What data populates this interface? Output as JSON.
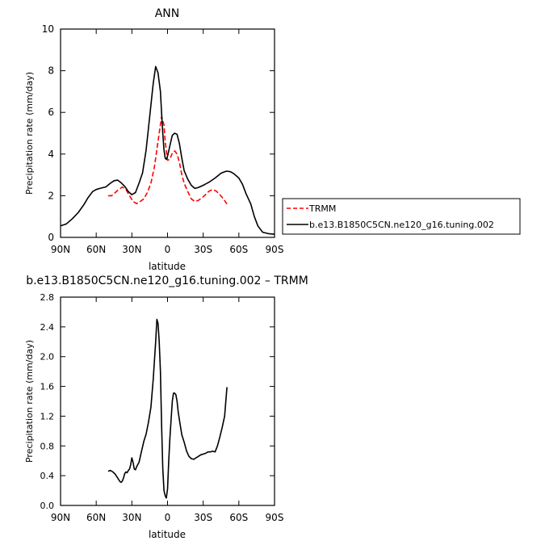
{
  "chart_data": [
    {
      "type": "line",
      "title": "ANN",
      "xlabel": "latitude",
      "ylabel": "Precipitation rate (mm/day)",
      "x_ticks": [
        "90N",
        "60N",
        "30N",
        "0",
        "30S",
        "60S",
        "90S"
      ],
      "x_tick_values": [
        90,
        60,
        30,
        0,
        -30,
        -60,
        -90
      ],
      "xlim": [
        90,
        -90
      ],
      "y_ticks": [
        "0",
        "2",
        "4",
        "6",
        "8",
        "10"
      ],
      "y_tick_values": [
        0,
        2,
        4,
        6,
        8,
        10
      ],
      "ylim": [
        0,
        10
      ],
      "grid": false,
      "legend_placement": "outside-right",
      "series": [
        {
          "name": "TRMM",
          "color": "#ff0000",
          "dash": true,
          "x": [
            50,
            47,
            44,
            41,
            38,
            35,
            32,
            29,
            26,
            23,
            20,
            17,
            14,
            11,
            8,
            5,
            3,
            2,
            0,
            -2,
            -4,
            -6,
            -8,
            -10,
            -12,
            -14,
            -17,
            -20,
            -23,
            -26,
            -29,
            -32,
            -35,
            -38,
            -41,
            -44,
            -47,
            -50
          ],
          "y": [
            2.0,
            2.0,
            2.15,
            2.3,
            2.42,
            2.3,
            2.0,
            1.72,
            1.62,
            1.72,
            1.85,
            2.15,
            2.6,
            3.4,
            4.6,
            5.8,
            5.4,
            4.6,
            3.7,
            3.75,
            4.05,
            4.15,
            4.0,
            3.6,
            3.0,
            2.6,
            2.2,
            1.85,
            1.72,
            1.78,
            1.9,
            2.05,
            2.22,
            2.3,
            2.22,
            2.05,
            1.85,
            1.6
          ]
        },
        {
          "name": "b.e13.B1850C5CN.ne120_g16.tuning.002",
          "color": "#000000",
          "dash": false,
          "x": [
            90,
            85,
            80,
            75,
            70,
            67,
            63,
            60,
            57,
            55,
            52,
            48,
            45,
            42,
            39,
            36,
            33,
            30,
            27,
            24,
            21,
            18,
            15,
            12,
            10,
            8,
            6,
            5,
            4,
            3,
            2,
            1,
            0,
            -2,
            -4,
            -6,
            -8,
            -10,
            -12,
            -14,
            -17,
            -20,
            -23,
            -26,
            -30,
            -35,
            -40,
            -45,
            -48,
            -50,
            -53,
            -56,
            -60,
            -63,
            -66,
            -70,
            -73,
            -76,
            -80,
            -85,
            -90
          ],
          "y": [
            0.55,
            0.65,
            0.9,
            1.2,
            1.6,
            1.9,
            2.2,
            2.3,
            2.35,
            2.38,
            2.42,
            2.6,
            2.72,
            2.75,
            2.62,
            2.45,
            2.2,
            2.05,
            2.15,
            2.6,
            3.1,
            4.2,
            5.8,
            7.4,
            8.2,
            7.9,
            7.0,
            6.0,
            5.0,
            4.2,
            3.8,
            3.75,
            3.9,
            4.4,
            4.9,
            5.0,
            4.95,
            4.5,
            3.8,
            3.2,
            2.8,
            2.5,
            2.35,
            2.4,
            2.5,
            2.65,
            2.85,
            3.08,
            3.15,
            3.18,
            3.15,
            3.05,
            2.85,
            2.55,
            2.1,
            1.6,
            1.0,
            0.55,
            0.25,
            0.18,
            0.15
          ]
        }
      ]
    },
    {
      "type": "line",
      "title": "b.e13.B1850C5CN.ne120_g16.tuning.002 – TRMM",
      "xlabel": "latitude",
      "ylabel": "Precipitation rate (mm/day)",
      "x_ticks": [
        "90N",
        "60N",
        "30N",
        "0",
        "30S",
        "60S",
        "90S"
      ],
      "x_tick_values": [
        90,
        60,
        30,
        0,
        -30,
        -60,
        -90
      ],
      "xlim": [
        90,
        -90
      ],
      "y_ticks": [
        "0.0",
        "0.4",
        "0.8",
        "1.2",
        "1.6",
        "2.0",
        "2.4",
        "2.8"
      ],
      "y_tick_values": [
        0,
        0.4,
        0.8,
        1.2,
        1.6,
        2.0,
        2.4,
        2.8
      ],
      "ylim": [
        0,
        2.8
      ],
      "grid": false,
      "series": [
        {
          "color": "#000000",
          "dash": false,
          "x": [
            50,
            48,
            46,
            44,
            42,
            40,
            39,
            38,
            37,
            36,
            35,
            34,
            33,
            32,
            31,
            30,
            29,
            28,
            27,
            26,
            25,
            24,
            22,
            20,
            18,
            16,
            14,
            12,
            10,
            9,
            8,
            7,
            6,
            5,
            4,
            3,
            2,
            1,
            0,
            -1,
            -2,
            -3,
            -4,
            -5,
            -6,
            -7,
            -8,
            -9,
            -10,
            -11,
            -12,
            -14,
            -16,
            -18,
            -20,
            -22,
            -24,
            -26,
            -28,
            -30,
            -32,
            -34,
            -36,
            -38,
            -40,
            -42,
            -44,
            -46,
            -48,
            -50
          ],
          "y": [
            0.46,
            0.47,
            0.45,
            0.42,
            0.37,
            0.32,
            0.31,
            0.33,
            0.37,
            0.43,
            0.45,
            0.44,
            0.47,
            0.49,
            0.55,
            0.64,
            0.58,
            0.49,
            0.48,
            0.52,
            0.55,
            0.58,
            0.72,
            0.86,
            0.96,
            1.12,
            1.32,
            1.7,
            2.2,
            2.5,
            2.45,
            2.2,
            1.8,
            1.1,
            0.5,
            0.2,
            0.13,
            0.1,
            0.22,
            0.6,
            0.9,
            1.15,
            1.4,
            1.51,
            1.51,
            1.49,
            1.4,
            1.25,
            1.15,
            1.05,
            0.95,
            0.85,
            0.73,
            0.66,
            0.63,
            0.62,
            0.64,
            0.66,
            0.68,
            0.69,
            0.7,
            0.72,
            0.72,
            0.73,
            0.72,
            0.8,
            0.92,
            1.05,
            1.2,
            1.59
          ]
        }
      ]
    }
  ]
}
